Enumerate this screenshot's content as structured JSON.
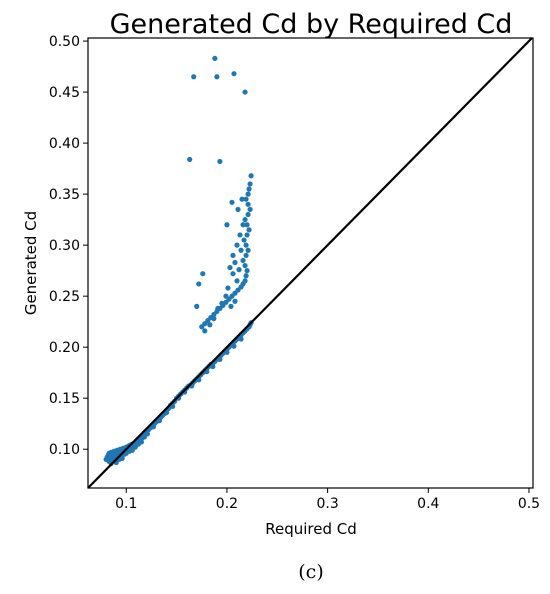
{
  "chart_data": {
    "type": "scatter",
    "title": "Generated Cd by Required Cd",
    "xlabel": "Required Cd",
    "ylabel": "Generated Cd",
    "xlim": [
      0.062,
      0.504
    ],
    "ylim": [
      0.062,
      0.503
    ],
    "x_ticks": [
      0.1,
      0.2,
      0.3,
      0.4,
      0.5
    ],
    "x_tick_labels": [
      "0.1",
      "0.2",
      "0.3",
      "0.4",
      "0.5"
    ],
    "y_ticks": [
      0.1,
      0.15,
      0.2,
      0.25,
      0.3,
      0.35,
      0.4,
      0.45,
      0.5
    ],
    "y_tick_labels": [
      "0.10",
      "0.15",
      "0.20",
      "0.25",
      "0.30",
      "0.35",
      "0.40",
      "0.45",
      "0.50"
    ],
    "grid": false,
    "legend": "none",
    "reference_line": {
      "kind": "y=x",
      "color": "#000000"
    },
    "series": [
      {
        "color": "#1f77b4",
        "points": [
          [
            0.08,
            0.09
          ],
          [
            0.081,
            0.092
          ],
          [
            0.082,
            0.094
          ],
          [
            0.083,
            0.096
          ],
          [
            0.083,
            0.088
          ],
          [
            0.084,
            0.091
          ],
          [
            0.085,
            0.097
          ],
          [
            0.085,
            0.086
          ],
          [
            0.086,
            0.093
          ],
          [
            0.087,
            0.095
          ],
          [
            0.088,
            0.098
          ],
          [
            0.088,
            0.089
          ],
          [
            0.089,
            0.092
          ],
          [
            0.09,
            0.096
          ],
          [
            0.09,
            0.087
          ],
          [
            0.091,
            0.099
          ],
          [
            0.092,
            0.093
          ],
          [
            0.093,
            0.097
          ],
          [
            0.093,
            0.09
          ],
          [
            0.094,
            0.1
          ],
          [
            0.095,
            0.094
          ],
          [
            0.096,
            0.098
          ],
          [
            0.096,
            0.091
          ],
          [
            0.097,
            0.101
          ],
          [
            0.098,
            0.095
          ],
          [
            0.099,
            0.099
          ],
          [
            0.1,
            0.102
          ],
          [
            0.1,
            0.096
          ],
          [
            0.101,
            0.1
          ],
          [
            0.102,
            0.103
          ],
          [
            0.103,
            0.098
          ],
          [
            0.104,
            0.104
          ],
          [
            0.105,
            0.101
          ],
          [
            0.106,
            0.105
          ],
          [
            0.107,
            0.103
          ],
          [
            0.108,
            0.106
          ],
          [
            0.109,
            0.104
          ],
          [
            0.11,
            0.108
          ],
          [
            0.111,
            0.106
          ],
          [
            0.112,
            0.11
          ],
          [
            0.113,
            0.108
          ],
          [
            0.114,
            0.111
          ],
          [
            0.115,
            0.11
          ],
          [
            0.116,
            0.113
          ],
          [
            0.117,
            0.112
          ],
          [
            0.118,
            0.115
          ],
          [
            0.12,
            0.117
          ],
          [
            0.122,
            0.119
          ],
          [
            0.124,
            0.121
          ],
          [
            0.126,
            0.123
          ],
          [
            0.128,
            0.125
          ],
          [
            0.13,
            0.127
          ],
          [
            0.132,
            0.129
          ],
          [
            0.134,
            0.131
          ],
          [
            0.136,
            0.133
          ],
          [
            0.138,
            0.135
          ],
          [
            0.14,
            0.138
          ],
          [
            0.142,
            0.14
          ],
          [
            0.144,
            0.143
          ],
          [
            0.146,
            0.145
          ],
          [
            0.148,
            0.147
          ],
          [
            0.15,
            0.15
          ],
          [
            0.152,
            0.152
          ],
          [
            0.154,
            0.154
          ],
          [
            0.156,
            0.156
          ],
          [
            0.158,
            0.158
          ],
          [
            0.16,
            0.16
          ],
          [
            0.162,
            0.162
          ],
          [
            0.164,
            0.163
          ],
          [
            0.166,
            0.165
          ],
          [
            0.168,
            0.167
          ],
          [
            0.17,
            0.169
          ],
          [
            0.172,
            0.171
          ],
          [
            0.174,
            0.173
          ],
          [
            0.176,
            0.175
          ],
          [
            0.178,
            0.177
          ],
          [
            0.18,
            0.179
          ],
          [
            0.182,
            0.181
          ],
          [
            0.184,
            0.183
          ],
          [
            0.186,
            0.184
          ],
          [
            0.188,
            0.186
          ],
          [
            0.19,
            0.188
          ],
          [
            0.192,
            0.19
          ],
          [
            0.194,
            0.192
          ],
          [
            0.196,
            0.194
          ],
          [
            0.198,
            0.196
          ],
          [
            0.2,
            0.198
          ],
          [
            0.202,
            0.2
          ],
          [
            0.204,
            0.202
          ],
          [
            0.206,
            0.204
          ],
          [
            0.208,
            0.206
          ],
          [
            0.21,
            0.208
          ],
          [
            0.212,
            0.21
          ],
          [
            0.214,
            0.212
          ],
          [
            0.216,
            0.214
          ],
          [
            0.218,
            0.216
          ],
          [
            0.22,
            0.218
          ],
          [
            0.222,
            0.22
          ],
          [
            0.223,
            0.222
          ],
          [
            0.224,
            0.224
          ],
          [
            0.152,
            0.15
          ],
          [
            0.158,
            0.156
          ],
          [
            0.165,
            0.162
          ],
          [
            0.172,
            0.168
          ],
          [
            0.18,
            0.176
          ],
          [
            0.186,
            0.181
          ],
          [
            0.193,
            0.188
          ],
          [
            0.2,
            0.195
          ],
          [
            0.207,
            0.201
          ],
          [
            0.214,
            0.208
          ],
          [
            0.14,
            0.136
          ],
          [
            0.146,
            0.142
          ],
          [
            0.133,
            0.128
          ],
          [
            0.127,
            0.122
          ],
          [
            0.121,
            0.115
          ],
          [
            0.118,
            0.112
          ],
          [
            0.115,
            0.107
          ],
          [
            0.112,
            0.105
          ],
          [
            0.109,
            0.102
          ],
          [
            0.106,
            0.099
          ],
          [
            0.175,
            0.22
          ],
          [
            0.178,
            0.223
          ],
          [
            0.181,
            0.226
          ],
          [
            0.184,
            0.229
          ],
          [
            0.187,
            0.232
          ],
          [
            0.19,
            0.235
          ],
          [
            0.193,
            0.238
          ],
          [
            0.196,
            0.241
          ],
          [
            0.199,
            0.244
          ],
          [
            0.202,
            0.247
          ],
          [
            0.205,
            0.25
          ],
          [
            0.208,
            0.253
          ],
          [
            0.211,
            0.256
          ],
          [
            0.214,
            0.259
          ],
          [
            0.216,
            0.262
          ],
          [
            0.218,
            0.265
          ],
          [
            0.219,
            0.27
          ],
          [
            0.22,
            0.275
          ],
          [
            0.218,
            0.28
          ],
          [
            0.216,
            0.285
          ],
          [
            0.219,
            0.29
          ],
          [
            0.221,
            0.295
          ],
          [
            0.219,
            0.3
          ],
          [
            0.217,
            0.305
          ],
          [
            0.22,
            0.31
          ],
          [
            0.222,
            0.315
          ],
          [
            0.22,
            0.32
          ],
          [
            0.218,
            0.325
          ],
          [
            0.221,
            0.33
          ],
          [
            0.223,
            0.335
          ],
          [
            0.221,
            0.34
          ],
          [
            0.219,
            0.345
          ],
          [
            0.221,
            0.35
          ],
          [
            0.222,
            0.355
          ],
          [
            0.223,
            0.36
          ],
          [
            0.224,
            0.368
          ],
          [
            0.21,
            0.265
          ],
          [
            0.206,
            0.272
          ],
          [
            0.203,
            0.278
          ],
          [
            0.208,
            0.283
          ],
          [
            0.212,
            0.276
          ],
          [
            0.206,
            0.29
          ],
          [
            0.21,
            0.3
          ],
          [
            0.214,
            0.295
          ],
          [
            0.208,
            0.245
          ],
          [
            0.204,
            0.24
          ],
          [
            0.199,
            0.25
          ],
          [
            0.195,
            0.243
          ],
          [
            0.191,
            0.238
          ],
          [
            0.187,
            0.228
          ],
          [
            0.183,
            0.222
          ],
          [
            0.178,
            0.216
          ],
          [
            0.201,
            0.258
          ],
          [
            0.213,
            0.31
          ],
          [
            0.216,
            0.32
          ],
          [
            0.211,
            0.335
          ],
          [
            0.215,
            0.345
          ],
          [
            0.205,
            0.342
          ],
          [
            0.2,
            0.32
          ],
          [
            0.172,
            0.262
          ],
          [
            0.176,
            0.272
          ],
          [
            0.17,
            0.24
          ],
          [
            0.163,
            0.384
          ],
          [
            0.193,
            0.382
          ],
          [
            0.167,
            0.465
          ],
          [
            0.188,
            0.483
          ],
          [
            0.19,
            0.465
          ],
          [
            0.207,
            0.468
          ],
          [
            0.218,
            0.45
          ]
        ]
      }
    ]
  },
  "caption": "(c)"
}
